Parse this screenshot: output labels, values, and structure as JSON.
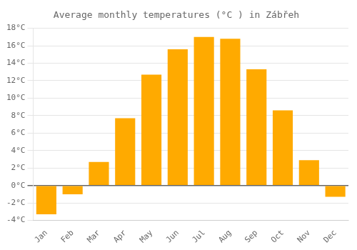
{
  "chart_data": {
    "type": "bar",
    "title": "Average monthly temperatures (°C ) in Zábřeh",
    "categories": [
      "Jan",
      "Feb",
      "Mar",
      "Apr",
      "May",
      "Jun",
      "Jul",
      "Aug",
      "Sep",
      "Oct",
      "Nov",
      "Dec"
    ],
    "values": [
      -3.3,
      -1.0,
      2.7,
      7.7,
      12.7,
      15.6,
      17.0,
      16.8,
      13.3,
      8.6,
      2.9,
      -1.3
    ],
    "color": "#FFAA00",
    "ylim": [
      -4,
      18
    ],
    "yticks": [
      {
        "value": -4,
        "label": "-4°C"
      },
      {
        "value": -2,
        "label": "-2°C"
      },
      {
        "value": 0,
        "label": "0°C"
      },
      {
        "value": 2,
        "label": "2°C"
      },
      {
        "value": 4,
        "label": "4°C"
      },
      {
        "value": 6,
        "label": "6°C"
      },
      {
        "value": 8,
        "label": "8°C"
      },
      {
        "value": 10,
        "label": "10°C"
      },
      {
        "value": 12,
        "label": "12°C"
      },
      {
        "value": 14,
        "label": "14°C"
      },
      {
        "value": 16,
        "label": "16°C"
      },
      {
        "value": 18,
        "label": "18°C"
      }
    ],
    "grid": true
  }
}
